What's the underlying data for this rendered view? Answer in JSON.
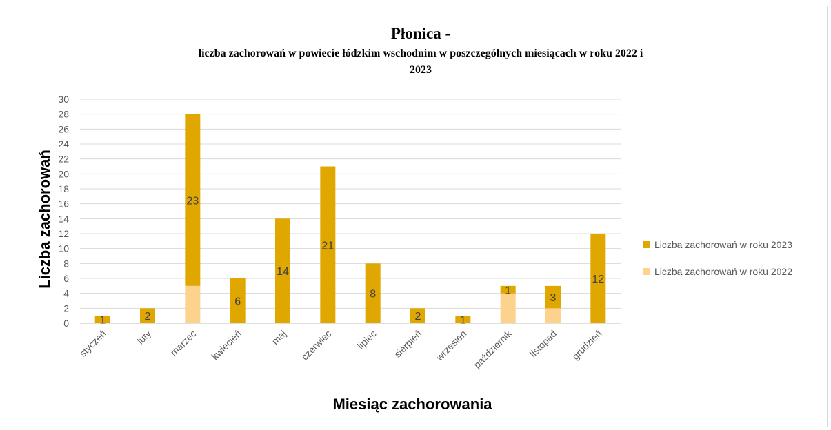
{
  "chart_data": {
    "type": "bar",
    "stacked": true,
    "title": "Płonica -",
    "subtitle_lines": [
      "liczba  zachorowań w powiecie łódzkim  wschodnim w poszczególnych miesiącach w roku 2022 i",
      "2023"
    ],
    "xlabel": "Miesiąc zachorowania",
    "ylabel": "Liczba zachorowań",
    "ylim": [
      0,
      30
    ],
    "ytick_step": 2,
    "grid": true,
    "legend_position": "right",
    "categories": [
      "styczeń",
      "luty",
      "marzec",
      "kwiecień",
      "maj",
      "czerwiec",
      "lipiec",
      "sierpień",
      "wrzesień",
      "październik",
      "listopad",
      "grudzień"
    ],
    "series": [
      {
        "name": "Liczba zachorowań w roku 2022",
        "color": "#fdd28c",
        "values": [
          0,
          0,
          5,
          0,
          0,
          0,
          0,
          0,
          0,
          4,
          2,
          0
        ]
      },
      {
        "name": "Liczba zachorowań w roku 2023",
        "color": "#dfa700",
        "values": [
          1,
          2,
          23,
          6,
          14,
          21,
          8,
          2,
          1,
          1,
          3,
          12
        ]
      }
    ],
    "data_labels_series": "Liczba zachorowań w roku 2023"
  }
}
